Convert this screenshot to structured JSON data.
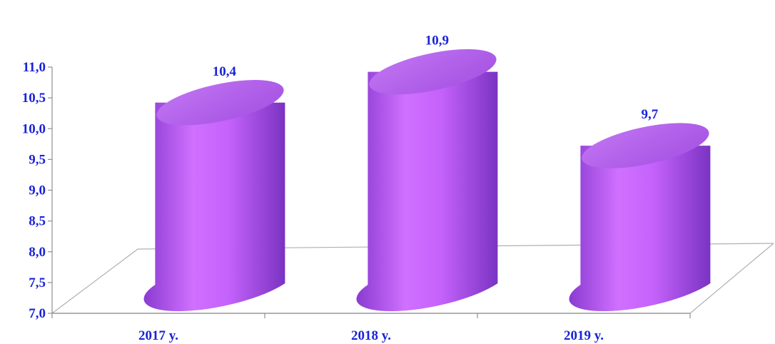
{
  "chart_data": {
    "type": "bar",
    "style": "3d-cylinder",
    "categories": [
      "2017 y.",
      "2018 y.",
      "2019 y."
    ],
    "values": [
      10.4,
      10.9,
      9.7
    ],
    "data_labels": [
      "10,4",
      "10,9",
      "9,7"
    ],
    "title": "",
    "xlabel": "",
    "ylabel": "",
    "ylim": [
      7.0,
      11.0
    ],
    "y_ticks": [
      7.0,
      7.5,
      8.0,
      8.5,
      9.0,
      9.5,
      10.0,
      10.5,
      11.0
    ],
    "y_tick_labels": [
      "7,0",
      "7,5",
      "8,0",
      "8,5",
      "9,0",
      "9,5",
      "10,0",
      "10,5",
      "11,0"
    ],
    "grid": false,
    "legend": "none",
    "colors": {
      "bar_light": "#df7cff",
      "bar_mid": "#b45af0",
      "bar_dark": "#7d34c6",
      "text": "#1a23d8",
      "axis": "#a0a0a0"
    }
  }
}
